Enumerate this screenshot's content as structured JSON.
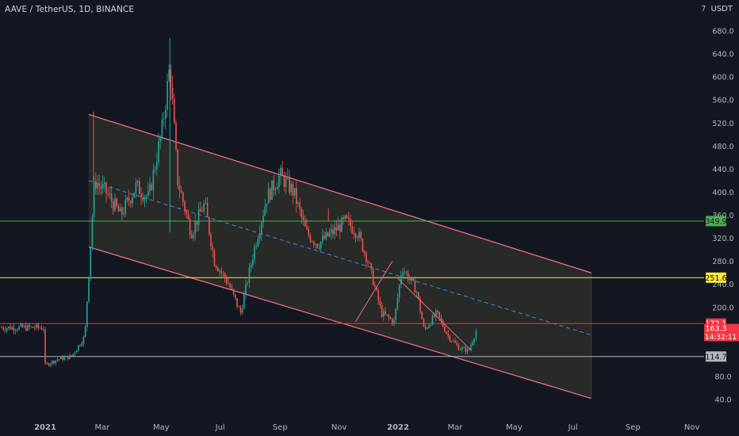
{
  "header": {
    "symbol": "AAVE / TetherUS, 1D, BINANCE",
    "zoom_label": "7",
    "currency": "USDT"
  },
  "colors": {
    "background": "#131722",
    "up": "#26a69a",
    "down": "#ef5350",
    "channel_line": "#f06a8a",
    "channel_fill": "#2c2e28",
    "midline": "#4a8ad3",
    "green_level": "#4caf50",
    "yellow_level": "#ffeb3b",
    "red_level": "#f23645",
    "gray_level": "#b2b5be"
  },
  "chart_data": {
    "type": "candlestick",
    "x": [
      "2021-01-01",
      "2021-01-14",
      "2021-01-28",
      "2021-02-11",
      "2021-02-21",
      "2021-03-05",
      "2021-03-20",
      "2021-04-05",
      "2021-04-18",
      "2021-05-02",
      "2021-05-10",
      "2021-05-18",
      "2021-06-01",
      "2021-06-15",
      "2021-06-25",
      "2021-07-10",
      "2021-07-22",
      "2021-08-05",
      "2021-08-18",
      "2021-09-01",
      "2021-09-15",
      "2021-09-28",
      "2021-10-10",
      "2021-10-25",
      "2021-11-08",
      "2021-11-20",
      "2021-12-01",
      "2021-12-15",
      "2021-12-28",
      "2022-01-05",
      "2022-01-20",
      "2022-01-28",
      "2022-02-10",
      "2022-02-22",
      "2022-03-05",
      "2022-03-15",
      "2022-03-24"
    ],
    "price": [
      100,
      110,
      115,
      150,
      420,
      400,
      360,
      410,
      390,
      510,
      620,
      420,
      330,
      380,
      280,
      240,
      190,
      300,
      390,
      430,
      400,
      330,
      310,
      330,
      350,
      330,
      280,
      190,
      175,
      270,
      230,
      160,
      190,
      150,
      130,
      125,
      165
    ],
    "ylim": [
      20,
      700
    ],
    "y_ticks": [
      40,
      80,
      200,
      240,
      280,
      320,
      360,
      400,
      440,
      480,
      520,
      560,
      600,
      640,
      680
    ],
    "y_tick_labels": [
      "40.0",
      "80.0",
      "200.0",
      "240.0",
      "280.0",
      "320.0",
      "360.0",
      "400.0",
      "440.0",
      "480.0",
      "520.0",
      "560.0",
      "600.0",
      "640.0",
      "680.0"
    ],
    "x_ticks": [
      "2021-01-01",
      "2021-03-01",
      "2021-05-01",
      "2021-07-01",
      "2021-09-01",
      "2021-11-01",
      "2022-01-01",
      "2022-03-01",
      "2022-05-01",
      "2022-07-01",
      "2022-09-01",
      "2022-11-01"
    ],
    "x_tick_labels": [
      "2021",
      "Mar",
      "May",
      "Jul",
      "Sep",
      "Nov",
      "2022",
      "Mar",
      "May",
      "Jul",
      "Sep",
      "Nov"
    ],
    "channel": {
      "upper": [
        [
          "2021-02-15",
          535
        ],
        [
          "2022-07-20",
          260
        ]
      ],
      "lower": [
        [
          "2021-02-15",
          305
        ],
        [
          "2022-07-20",
          42
        ]
      ],
      "midline": [
        [
          "2021-02-15",
          420
        ],
        [
          "2022-07-20",
          152
        ]
      ]
    },
    "horizontal_levels": [
      {
        "value": 349.9,
        "label": "349.9",
        "color": "#4caf50"
      },
      {
        "value": 251.6,
        "label": "251.6",
        "color": "#ffeb3b"
      },
      {
        "value": 172.1,
        "label": "172.1",
        "color": "#f23645"
      },
      {
        "value": 114.7,
        "label": "114.7",
        "color": "#b2b5be"
      }
    ],
    "current_price": {
      "value": 163.3,
      "label": "163.3",
      "countdown": "14:32:11"
    },
    "trendlines": [
      [
        [
          "2021-11-18",
          175
        ],
        [
          "2021-12-26",
          280
        ]
      ],
      [
        [
          "2022-01-01",
          250
        ],
        [
          "2022-03-18",
          125
        ]
      ]
    ],
    "grid": false,
    "y_axis_side": "right"
  }
}
